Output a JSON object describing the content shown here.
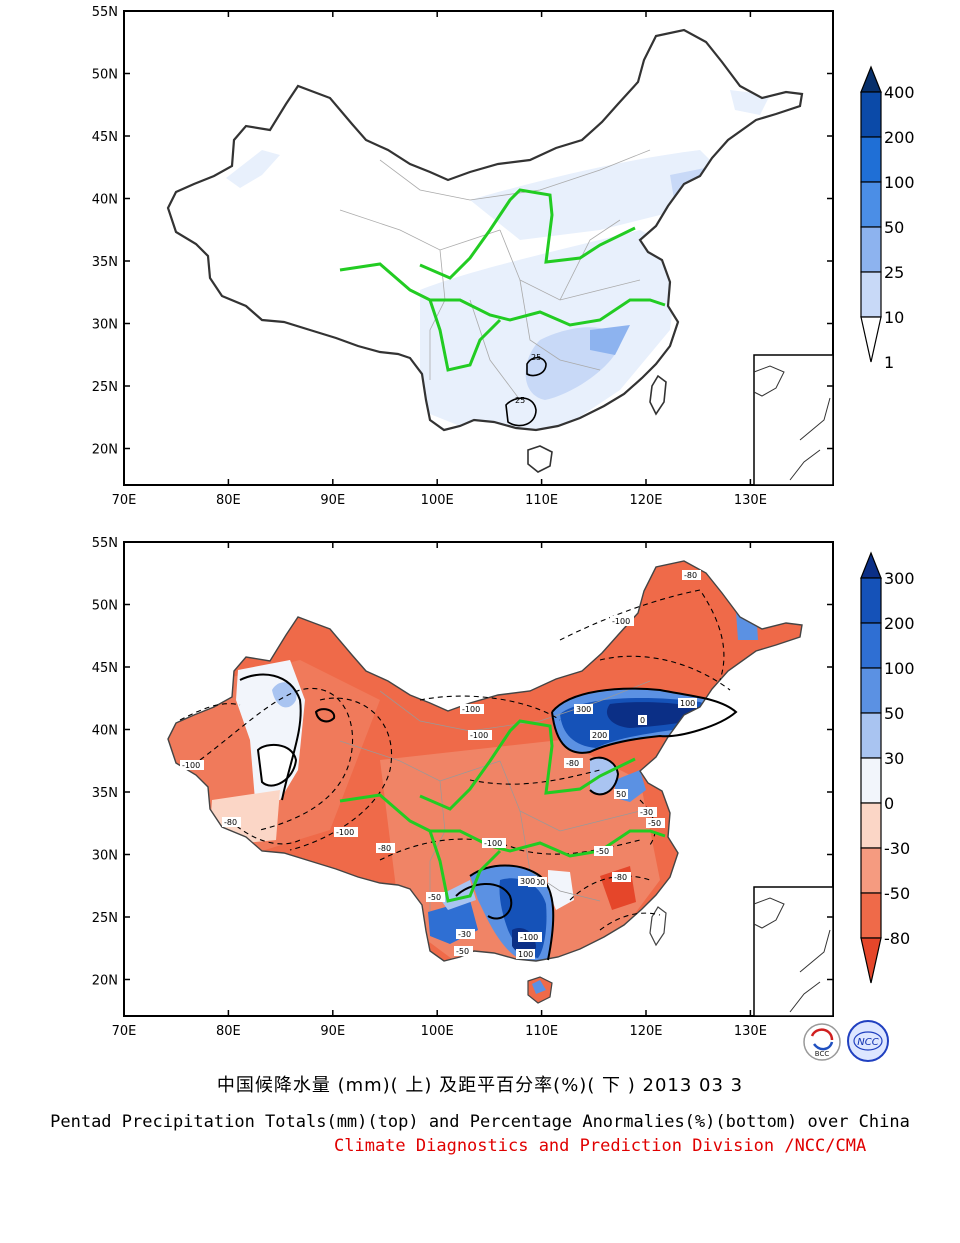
{
  "maps": {
    "top": {
      "lat_labels": [
        "55N",
        "50N",
        "45N",
        "40N",
        "35N",
        "30N",
        "25N",
        "20N"
      ],
      "lon_labels": [
        "70E",
        "80E",
        "90E",
        "100E",
        "110E",
        "120E",
        "130E"
      ],
      "colorbar": {
        "levels": [
          "400",
          "200",
          "100",
          "50",
          "25",
          "10",
          "1"
        ],
        "colors": [
          "#08306b",
          "#0b4aa8",
          "#1f6fd6",
          "#4b8ee6",
          "#8db3ef",
          "#c8d9f7",
          "#ffffff"
        ]
      },
      "contour_labels": [
        "25",
        "25"
      ]
    },
    "bottom": {
      "lat_labels": [
        "55N",
        "50N",
        "45N",
        "40N",
        "35N",
        "30N",
        "25N",
        "20N"
      ],
      "lon_labels": [
        "70E",
        "80E",
        "90E",
        "100E",
        "110E",
        "120E",
        "130E"
      ],
      "colorbar": {
        "levels": [
          "300",
          "200",
          "100",
          "50",
          "30",
          "0",
          "-30",
          "-50",
          "-80"
        ],
        "colors": [
          "#0b2f86",
          "#1552b8",
          "#2f6fd3",
          "#5b91e3",
          "#a9c4f1",
          "#f2f5fb",
          "#fbd6c6",
          "#f59b80",
          "#ef6a49",
          "#e5462a"
        ]
      },
      "contour_labels": [
        "-100",
        "-80",
        "-100",
        "-100",
        "-100",
        "-80",
        "-100",
        "-50",
        "300",
        "200",
        "100",
        "0",
        "-80",
        "50",
        "-30",
        "-50",
        "-100",
        "-80",
        "-50",
        "-100",
        "100",
        "200",
        "300",
        "-50",
        "-30",
        "-80"
      ]
    }
  },
  "logos": {
    "bcc": "BCC",
    "ncc": "NCC"
  },
  "captions": {
    "chinese": "中国候降水量 (mm)( 上) 及距平百分率(%)( 下 ) 2013 03 3",
    "english": "Pentad Precipitation Totals(mm)(top) and Percentage Anormalies(%)(bottom) over China",
    "org": "Climate Diagnostics and Prediction Division /NCC/CMA"
  }
}
